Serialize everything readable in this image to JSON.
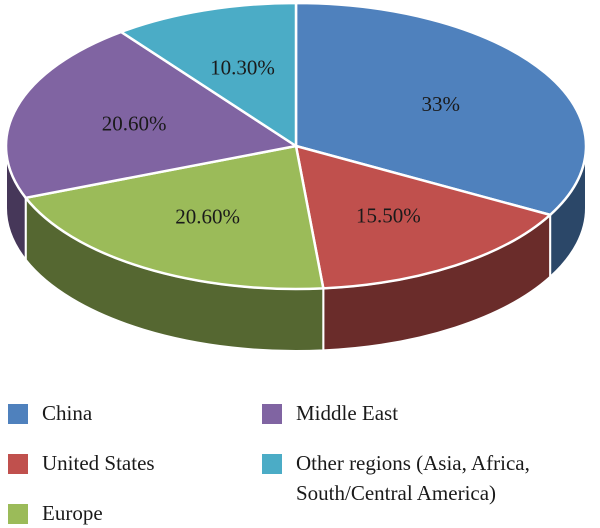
{
  "chart_data": {
    "type": "pie",
    "title": "",
    "three_d": true,
    "slices": [
      {
        "label": "China",
        "value": 33,
        "display": "33%",
        "color": "#4f81bd"
      },
      {
        "label": "United States",
        "value": 15.5,
        "display": "15.50%",
        "color": "#c0504d"
      },
      {
        "label": "Europe",
        "value": 20.6,
        "display": "20.60%",
        "color": "#9bbb59"
      },
      {
        "label": "Middle East",
        "value": 20.6,
        "display": "20.60%",
        "color": "#8064a2"
      },
      {
        "label": "Other regions (Asia, Africa,\nSouth/Central America)",
        "value": 10.3,
        "display": "10.30%",
        "color": "#4bacc6"
      }
    ],
    "legend_position": "bottom"
  }
}
